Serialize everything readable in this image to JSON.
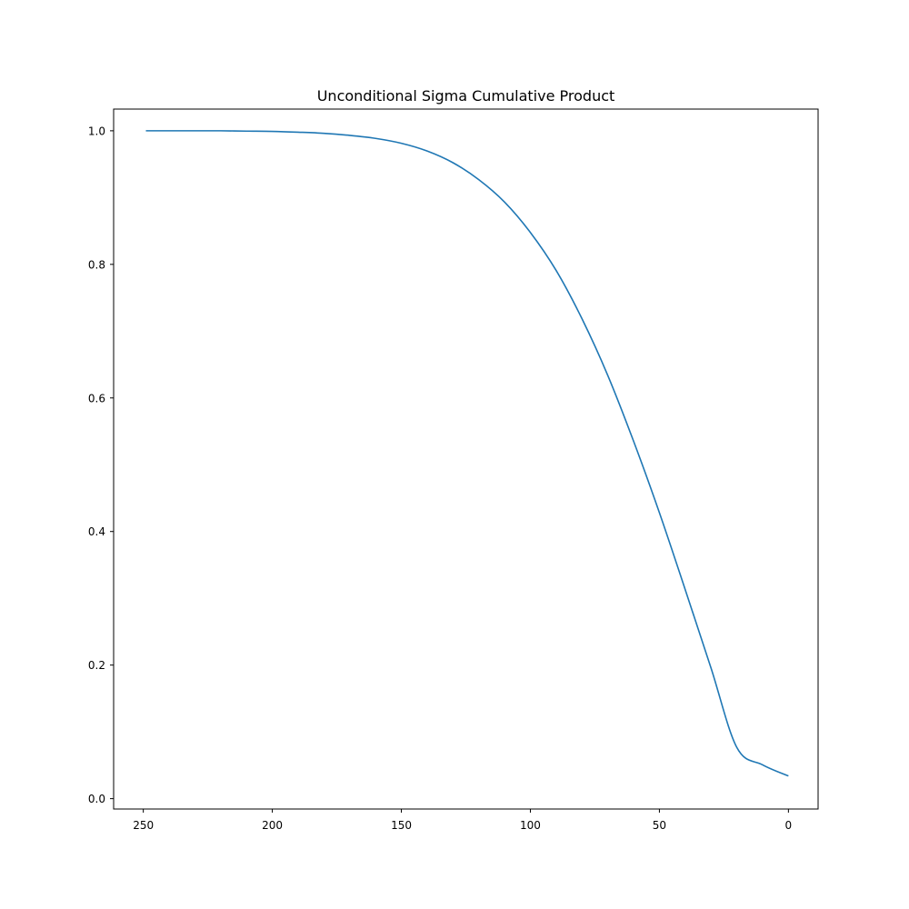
{
  "chart_data": {
    "type": "line",
    "title": "Unconditional Sigma Cumulative Product",
    "xlabel": "",
    "ylabel": "",
    "xlim": [
      261.5,
      -11.5
    ],
    "ylim": [
      -0.0155,
      1.0325
    ],
    "x_reversed": true,
    "grid": false,
    "legend": "none",
    "x_ticks": [
      250,
      200,
      150,
      100,
      50,
      0
    ],
    "x_tick_labels": [
      "250",
      "200",
      "150",
      "100",
      "50",
      "0"
    ],
    "y_ticks": [
      0.0,
      0.2,
      0.4,
      0.6,
      0.8,
      1.0
    ],
    "y_tick_labels": [
      "0.0",
      "0.2",
      "0.4",
      "0.6",
      "0.8",
      "1.0"
    ],
    "series": [
      {
        "color": "#1f77b4",
        "x": [
          249,
          240,
          230,
          220,
          210,
          200,
          190,
          180,
          170,
          160,
          150,
          140,
          130,
          120,
          110,
          100,
          90,
          80,
          70,
          60,
          50,
          40,
          30,
          20,
          10,
          0
        ],
        "y": [
          1.0,
          1.0,
          1.0,
          1.0,
          0.9995,
          0.9991,
          0.9979,
          0.9962,
          0.9931,
          0.9886,
          0.9813,
          0.9697,
          0.9522,
          0.9269,
          0.8933,
          0.8478,
          0.7908,
          0.7186,
          0.6337,
          0.5352,
          0.4282,
          0.3131,
          0.1957,
          0.0767,
          0.0506,
          0.034
        ]
      }
    ]
  }
}
